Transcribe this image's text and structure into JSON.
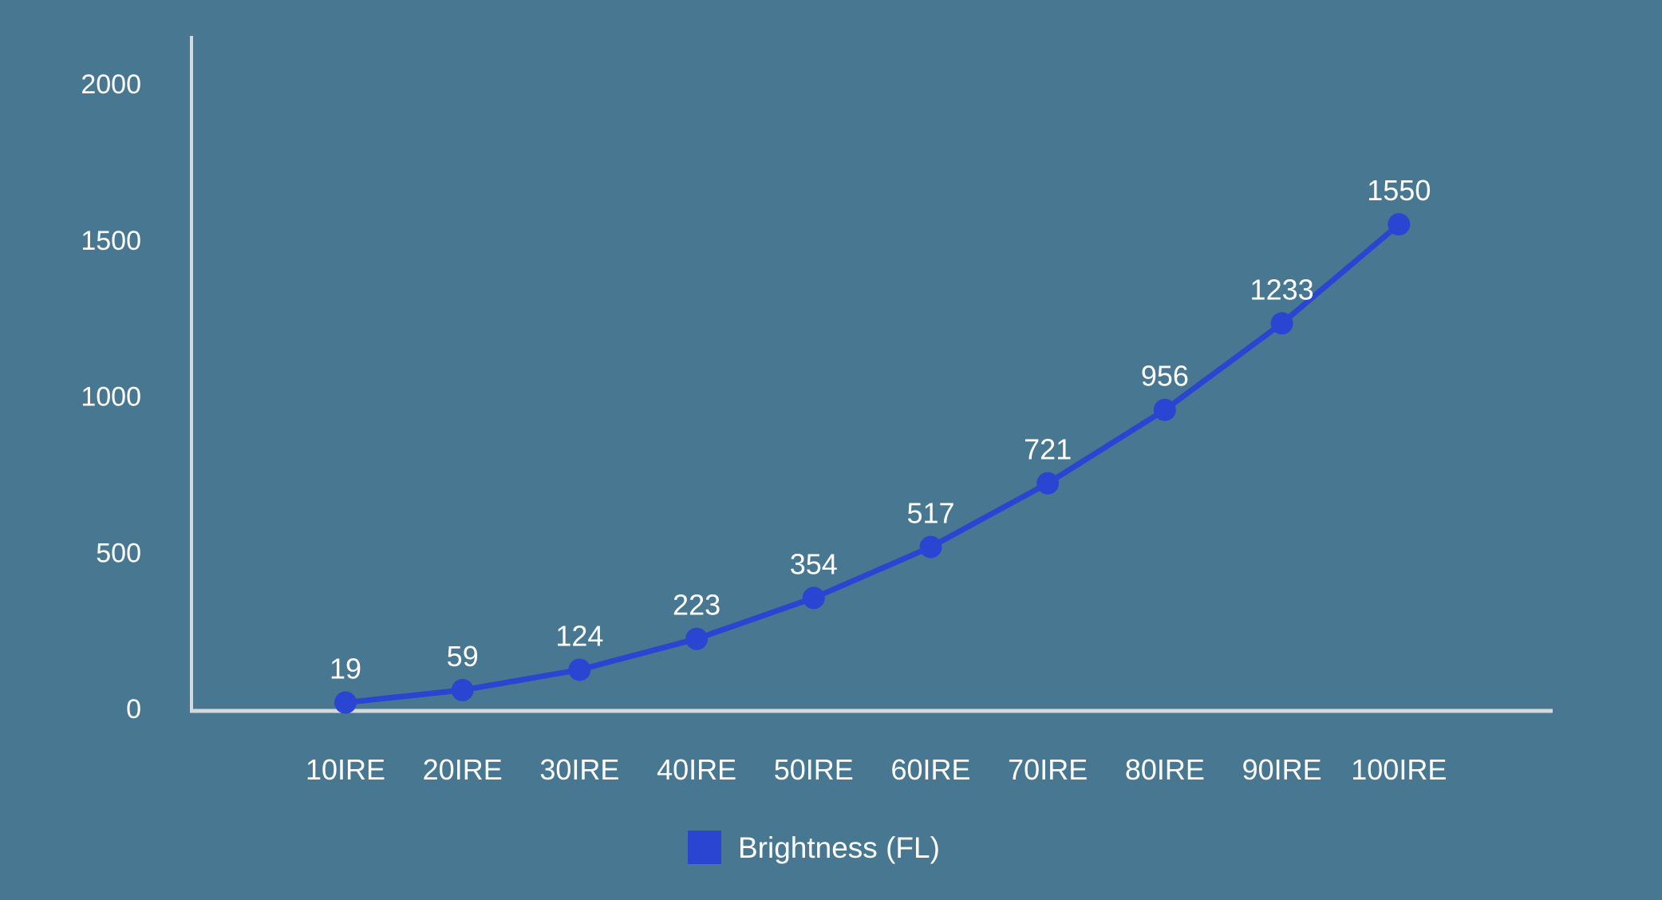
{
  "colors": {
    "background": "#487891",
    "axis": "#d6d9dc",
    "series": "#2a45d1",
    "text": "#ffffff"
  },
  "chart_data": {
    "type": "line",
    "title": "",
    "xlabel": "",
    "ylabel": "",
    "categories": [
      "10IRE",
      "20IRE",
      "30IRE",
      "40IRE",
      "50IRE",
      "60IRE",
      "70IRE",
      "80IRE",
      "90IRE",
      "100IRE"
    ],
    "series": [
      {
        "name": "Brightness (FL)",
        "values": [
          19,
          59,
          124,
          223,
          354,
          517,
          721,
          956,
          1233,
          1550
        ]
      }
    ],
    "ylim": [
      0,
      2000
    ],
    "yticks": [
      0,
      500,
      1000,
      1500,
      2000
    ],
    "grid": false,
    "legend": "bottom-center",
    "data_labels": true
  }
}
